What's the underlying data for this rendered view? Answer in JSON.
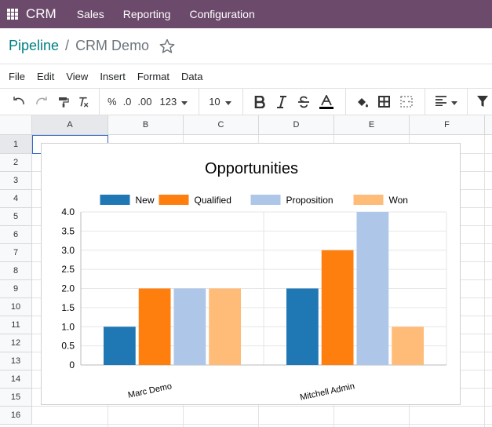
{
  "topbar": {
    "brand": "CRM",
    "menu": [
      "Sales",
      "Reporting",
      "Configuration"
    ]
  },
  "breadcrumb": {
    "link": "Pipeline",
    "separator": "/",
    "current": "CRM Demo"
  },
  "sheet_menu": [
    "File",
    "Edit",
    "View",
    "Insert",
    "Format",
    "Data"
  ],
  "toolbar": {
    "percent": "%",
    "decrease_decimal": ".0",
    "increase_decimal": ".00",
    "number_format": "123",
    "font_size": "10"
  },
  "columns": [
    "A",
    "B",
    "C",
    "D",
    "E",
    "F"
  ],
  "rows": [
    "1",
    "2",
    "3",
    "4",
    "5",
    "6",
    "7",
    "8",
    "9",
    "10",
    "11",
    "12",
    "13",
    "14",
    "15",
    "16"
  ],
  "colors": {
    "brand_bar": "#6c4a6b",
    "link": "#017e84",
    "selection": "#3266ca"
  },
  "chart_data": {
    "type": "bar",
    "title": "Opportunities",
    "categories": [
      "Marc Demo",
      "Mitchell Admin"
    ],
    "series": [
      {
        "name": "New",
        "color": "#1f77b4",
        "values": [
          1,
          2
        ]
      },
      {
        "name": "Qualified",
        "color": "#ff7f0e",
        "values": [
          2,
          3
        ]
      },
      {
        "name": "Proposition",
        "color": "#aec7e8",
        "values": [
          2,
          4
        ]
      },
      {
        "name": "Won",
        "color": "#ffbb78",
        "values": [
          2,
          1
        ]
      }
    ],
    "ylim": [
      0,
      4
    ],
    "yticks": [
      "0",
      "0.5",
      "1.0",
      "1.5",
      "2.0",
      "2.5",
      "3.0",
      "3.5",
      "4.0"
    ],
    "legend": "top",
    "grid": true
  }
}
